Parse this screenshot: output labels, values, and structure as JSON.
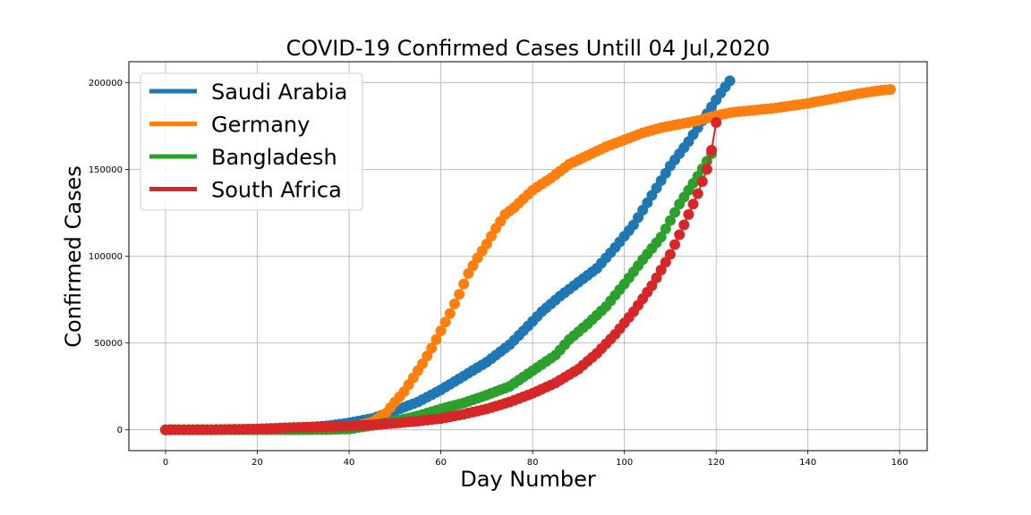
{
  "chart_data": {
    "type": "scatter",
    "title": "COVID-19 Confirmed Cases Untill 04 Jul,2020",
    "xlabel": "Day Number",
    "ylabel": "Confirmed Cases",
    "xlim": [
      -8,
      166
    ],
    "ylim": [
      -12000,
      212000
    ],
    "xticks": [
      0,
      20,
      40,
      60,
      80,
      100,
      120,
      140,
      160
    ],
    "yticks": [
      0,
      50000,
      100000,
      150000,
      200000
    ],
    "grid": true,
    "legend_position": "top-left",
    "series": [
      {
        "name": "Saudi Arabia",
        "color": "#1f77b4",
        "points": [
          [
            0,
            0
          ],
          [
            10,
            50
          ],
          [
            20,
            200
          ],
          [
            30,
            1300
          ],
          [
            35,
            2200
          ],
          [
            40,
            4000
          ],
          [
            45,
            6500
          ],
          [
            50,
            11000
          ],
          [
            55,
            16000
          ],
          [
            60,
            23000
          ],
          [
            65,
            31000
          ],
          [
            70,
            39000
          ],
          [
            75,
            49000
          ],
          [
            78,
            57000
          ],
          [
            82,
            68000
          ],
          [
            86,
            77000
          ],
          [
            90,
            85000
          ],
          [
            94,
            93000
          ],
          [
            98,
            105000
          ],
          [
            102,
            118000
          ],
          [
            106,
            135000
          ],
          [
            110,
            152000
          ],
          [
            114,
            166000
          ],
          [
            118,
            182000
          ],
          [
            121,
            194000
          ],
          [
            123,
            201000
          ]
        ]
      },
      {
        "name": "Germany",
        "color": "#ff7f0e",
        "points": [
          [
            0,
            0
          ],
          [
            10,
            20
          ],
          [
            20,
            50
          ],
          [
            30,
            150
          ],
          [
            35,
            300
          ],
          [
            40,
            1000
          ],
          [
            45,
            4500
          ],
          [
            48,
            9500
          ],
          [
            50,
            16000
          ],
          [
            52,
            22000
          ],
          [
            54,
            30000
          ],
          [
            56,
            38000
          ],
          [
            58,
            47000
          ],
          [
            60,
            57000
          ],
          [
            62,
            67000
          ],
          [
            64,
            78000
          ],
          [
            66,
            90000
          ],
          [
            68,
            99000
          ],
          [
            70,
            107000
          ],
          [
            72,
            116000
          ],
          [
            74,
            124000
          ],
          [
            76,
            128000
          ],
          [
            78,
            133000
          ],
          [
            80,
            138000
          ],
          [
            84,
            145000
          ],
          [
            88,
            153000
          ],
          [
            92,
            158000
          ],
          [
            96,
            163000
          ],
          [
            100,
            167000
          ],
          [
            104,
            171000
          ],
          [
            108,
            174000
          ],
          [
            112,
            176000
          ],
          [
            116,
            178000
          ],
          [
            120,
            181000
          ],
          [
            124,
            183000
          ],
          [
            128,
            184000
          ],
          [
            132,
            185000
          ],
          [
            136,
            186500
          ],
          [
            140,
            188000
          ],
          [
            144,
            190000
          ],
          [
            148,
            192000
          ],
          [
            152,
            194000
          ],
          [
            156,
            195500
          ],
          [
            158,
            196000
          ]
        ]
      },
      {
        "name": "Bangladesh",
        "color": "#2ca02c",
        "points": [
          [
            0,
            0
          ],
          [
            10,
            10
          ],
          [
            20,
            30
          ],
          [
            30,
            50
          ],
          [
            35,
            100
          ],
          [
            40,
            500
          ],
          [
            45,
            2500
          ],
          [
            50,
            5000
          ],
          [
            55,
            8000
          ],
          [
            60,
            12000
          ],
          [
            65,
            15500
          ],
          [
            70,
            20000
          ],
          [
            75,
            25000
          ],
          [
            80,
            34000
          ],
          [
            85,
            43000
          ],
          [
            88,
            52000
          ],
          [
            92,
            61000
          ],
          [
            96,
            71000
          ],
          [
            100,
            84000
          ],
          [
            104,
            98000
          ],
          [
            108,
            111000
          ],
          [
            112,
            130000
          ],
          [
            116,
            146000
          ],
          [
            119,
            159000
          ]
        ]
      },
      {
        "name": "South Africa",
        "color": "#d62728",
        "points": [
          [
            0,
            0
          ],
          [
            10,
            50
          ],
          [
            20,
            500
          ],
          [
            30,
            1500
          ],
          [
            35,
            1800
          ],
          [
            40,
            2200
          ],
          [
            45,
            2800
          ],
          [
            50,
            3800
          ],
          [
            55,
            5000
          ],
          [
            60,
            6500
          ],
          [
            65,
            9000
          ],
          [
            70,
            12000
          ],
          [
            75,
            16000
          ],
          [
            80,
            21000
          ],
          [
            85,
            27000
          ],
          [
            90,
            35000
          ],
          [
            94,
            44000
          ],
          [
            98,
            55000
          ],
          [
            102,
            68000
          ],
          [
            106,
            83000
          ],
          [
            110,
            101000
          ],
          [
            113,
            118000
          ],
          [
            116,
            136000
          ],
          [
            118,
            150000
          ],
          [
            119,
            161000
          ],
          [
            120,
            177000
          ]
        ]
      }
    ]
  }
}
